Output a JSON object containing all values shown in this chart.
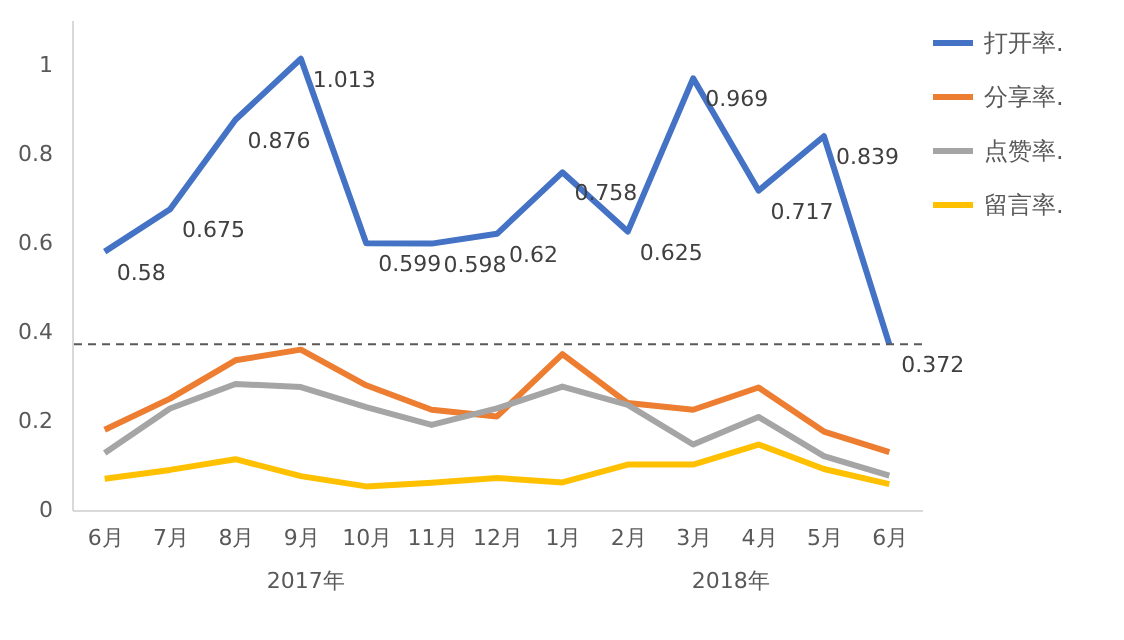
{
  "chart_data": {
    "type": "line",
    "categories": [
      "6月",
      "7月",
      "8月",
      "9月",
      "10月",
      "11月",
      "12月",
      "1月",
      "2月",
      "3月",
      "4月",
      "5月",
      "6月"
    ],
    "series": [
      {
        "name": "打开率.",
        "color": "#4472c4",
        "values": [
          0.58,
          0.675,
          0.876,
          1.013,
          0.599,
          0.598,
          0.62,
          0.758,
          0.625,
          0.969,
          0.717,
          0.839,
          0.372
        ],
        "value_labels": [
          "0.58",
          "0.675",
          "0.876",
          "1.013",
          "0.599",
          "0.598",
          "0.62",
          "0.758",
          "0.625",
          "0.969",
          "0.717",
          "0.839",
          "0.372"
        ]
      },
      {
        "name": "分享率.",
        "color": "#ed7d31",
        "values": [
          0.18,
          0.25,
          0.336,
          0.36,
          0.28,
          0.225,
          0.21,
          0.35,
          0.24,
          0.225,
          0.275,
          0.176,
          0.13
        ]
      },
      {
        "name": "点赞率.",
        "color": "#a5a5a5",
        "values": [
          0.128,
          0.228,
          0.283,
          0.276,
          0.231,
          0.191,
          0.228,
          0.277,
          0.236,
          0.147,
          0.209,
          0.121,
          0.077
        ]
      },
      {
        "name": "留言率.",
        "color": "#ffc000",
        "values": [
          0.07,
          0.09,
          0.114,
          0.076,
          0.053,
          0.061,
          0.072,
          0.062,
          0.102,
          0.102,
          0.147,
          0.092,
          0.058
        ]
      }
    ],
    "ylim": [
      0,
      1.1
    ],
    "yticks": [
      0,
      0.2,
      0.4,
      0.6,
      0.8,
      1
    ],
    "grid": false,
    "legend": "right",
    "marker": "none",
    "line_style": "solid",
    "ref_lines": [
      {
        "axis": "y",
        "value": 0.372,
        "color": "#595959",
        "line_style": "dashed"
      }
    ],
    "annotations": [
      "2017年",
      "2018年"
    ]
  }
}
